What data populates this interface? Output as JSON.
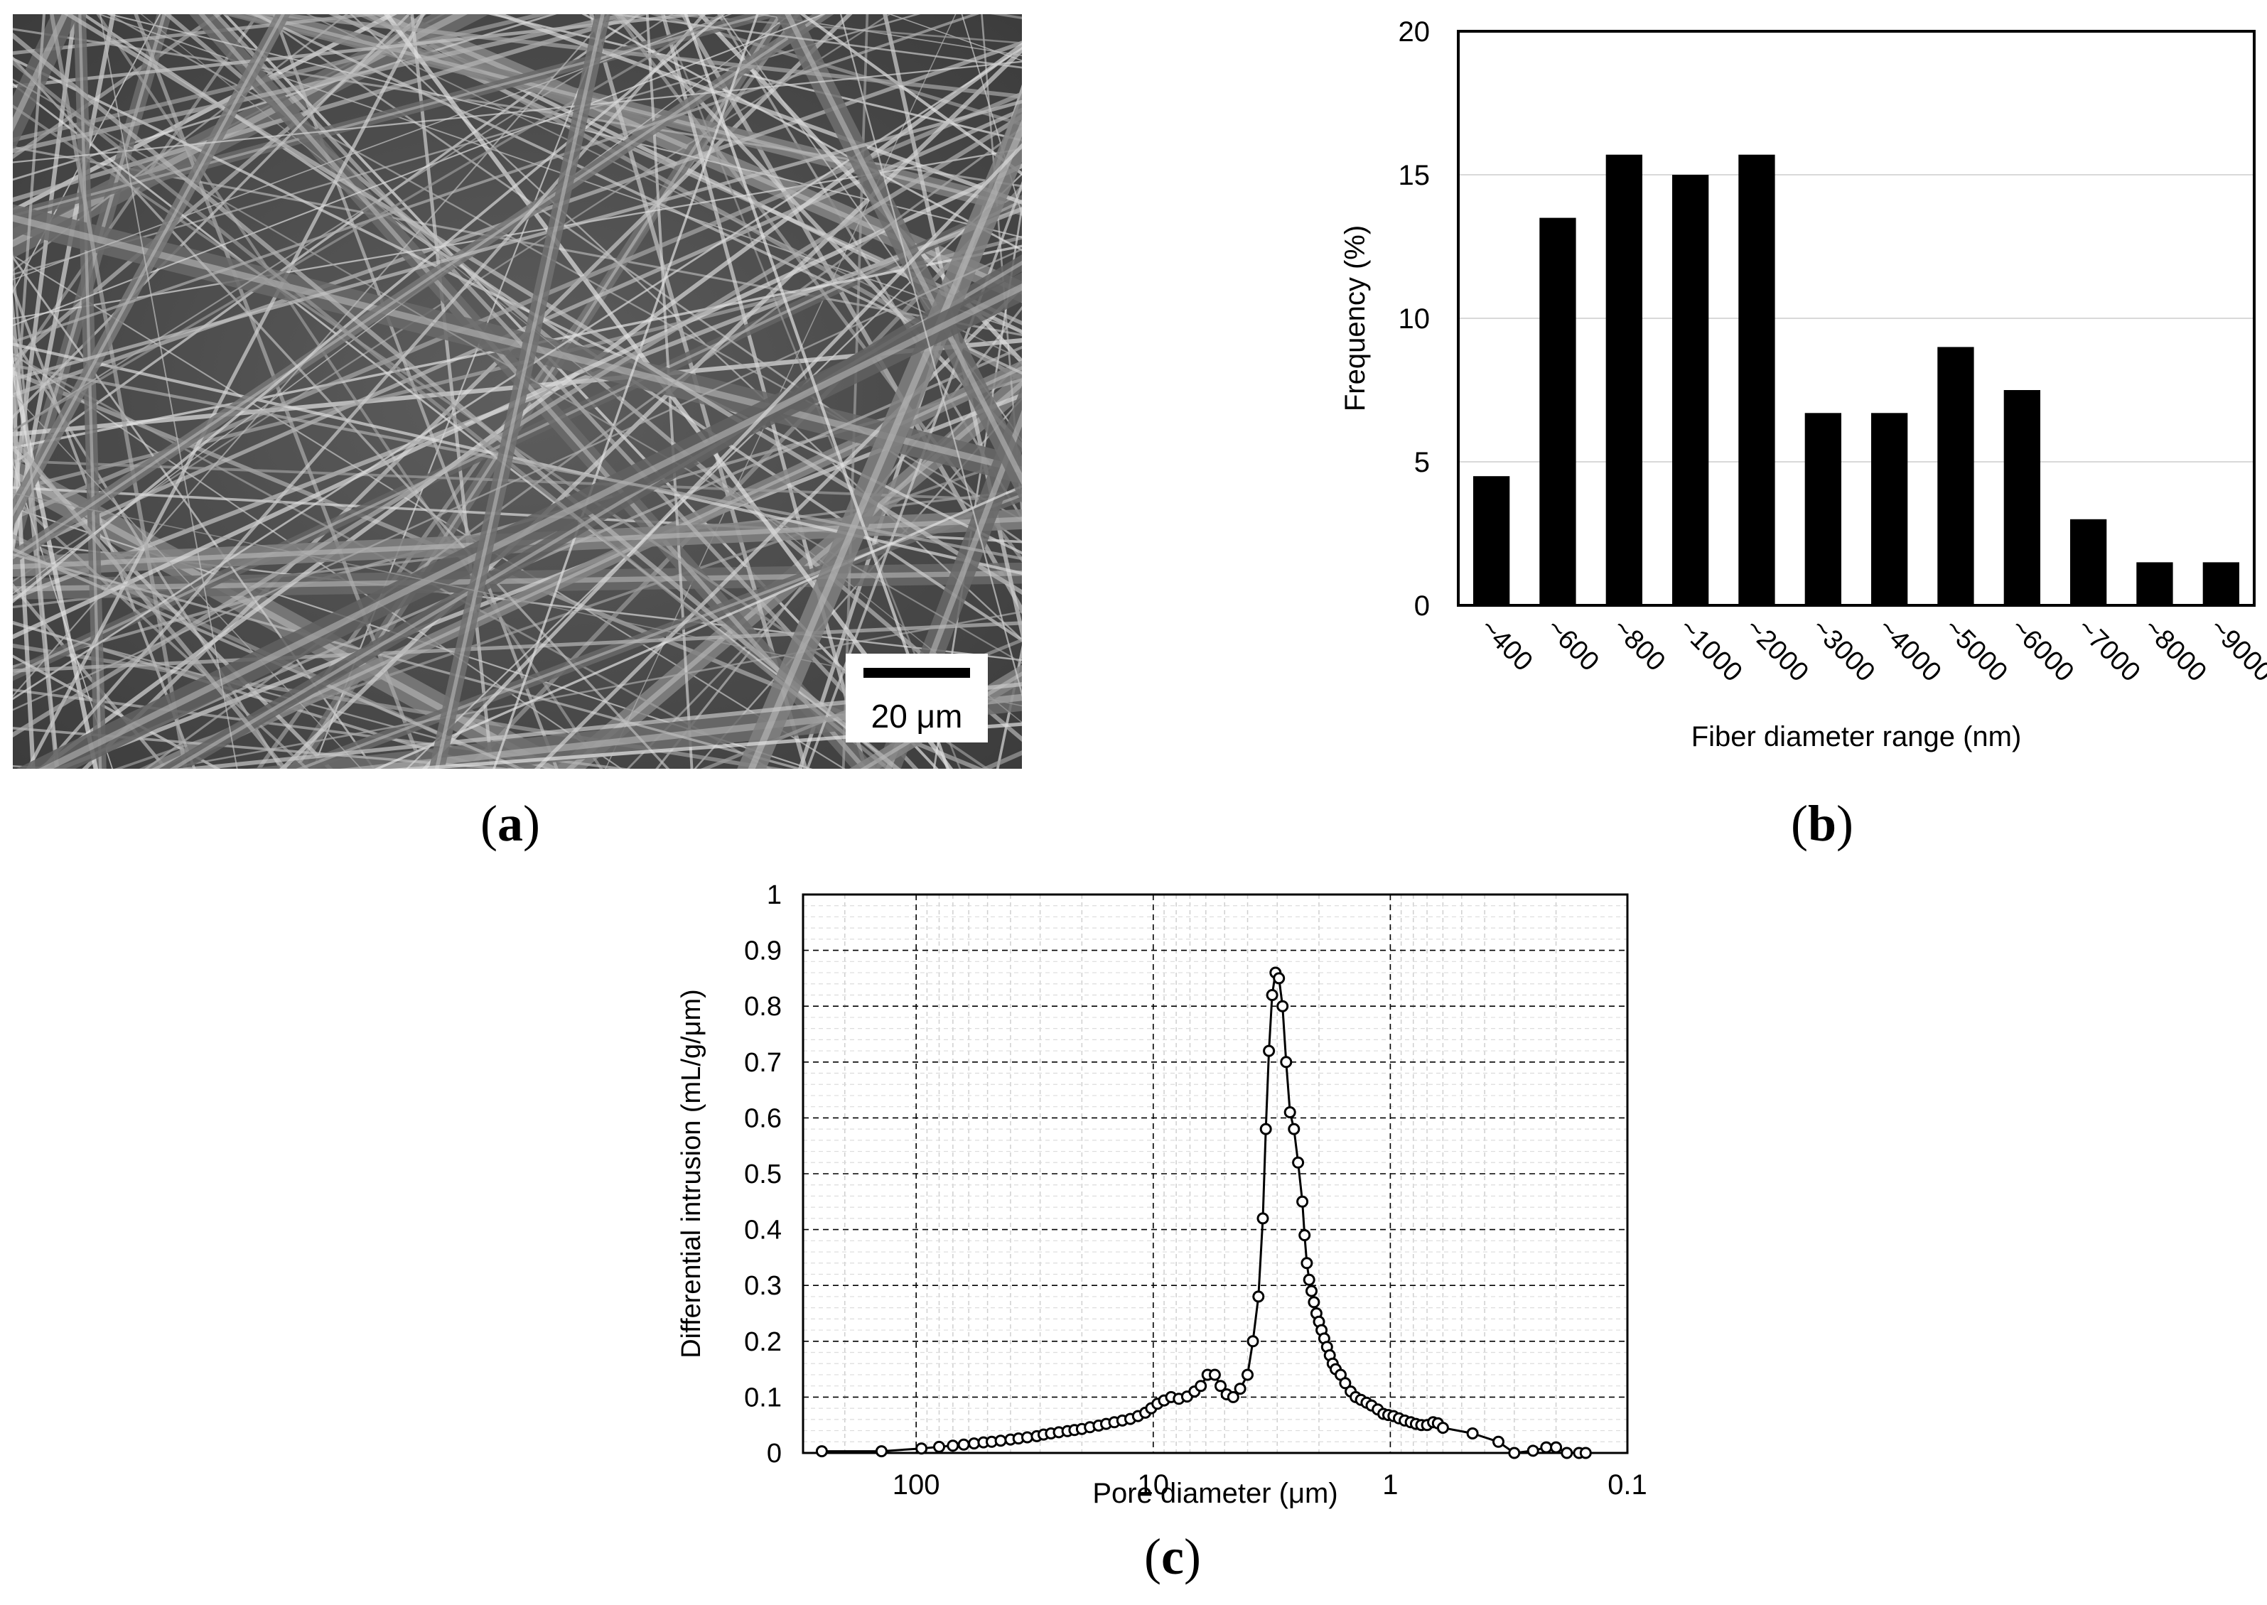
{
  "panel_a": {
    "caption_open": "(",
    "caption_letter": "a",
    "caption_close": ")",
    "scale_bar_label": "20 μm"
  },
  "panel_b": {
    "caption_open": "(",
    "caption_letter": "b",
    "caption_close": ")"
  },
  "panel_c": {
    "caption_open": "(",
    "caption_letter": "c",
    "caption_close": ")"
  },
  "chart_data": [
    {
      "type": "bar",
      "title": "",
      "xlabel": "Fiber diameter range (nm)",
      "ylabel": "Frequency (%)",
      "categories": [
        "~400",
        "~600",
        "~800",
        "~1000",
        "~2000",
        "~3000",
        "~4000",
        "~5000",
        "~6000",
        "~7000",
        "~8000",
        "~9000"
      ],
      "values": [
        4.5,
        13.5,
        15.7,
        15.0,
        15.7,
        6.7,
        6.7,
        9.0,
        7.5,
        3.0,
        1.5,
        1.5
      ],
      "ylim": [
        0,
        20
      ],
      "yticks": [
        0,
        5,
        10,
        15,
        20
      ],
      "grid": "horizontal",
      "bar_color": "#000000"
    },
    {
      "type": "line",
      "title": "",
      "xlabel": "Pore diameter (μm)",
      "ylabel": "Differential intrusion (mL/g/μm)",
      "x_scale": "log",
      "x_reversed": true,
      "xlim": [
        300,
        0.1
      ],
      "ylim": [
        0,
        1
      ],
      "xticks": [
        100,
        10,
        1,
        0.1
      ],
      "xtick_labels": [
        "100",
        "10",
        "1",
        "0.1"
      ],
      "yticks": [
        0,
        0.1,
        0.2,
        0.3,
        0.4,
        0.5,
        0.6,
        0.7,
        0.8,
        0.9,
        1
      ],
      "ytick_labels": [
        "0",
        "0.1",
        "0.2",
        "0.3",
        "0.4",
        "0.5",
        "0.6",
        "0.7",
        "0.8",
        "0.9",
        "1"
      ],
      "grid": "dashed",
      "marker": "open-circle",
      "x": [
        250,
        140,
        95,
        80,
        70,
        63,
        57,
        52,
        48,
        44,
        40,
        37,
        34,
        31,
        29,
        27,
        25,
        23,
        21.5,
        20,
        18.5,
        17,
        15.8,
        14.6,
        13.5,
        12.5,
        11.6,
        10.8,
        10.2,
        9.6,
        9.0,
        8.4,
        7.8,
        7.2,
        6.7,
        6.3,
        5.9,
        5.5,
        5.2,
        4.9,
        4.6,
        4.3,
        4.0,
        3.8,
        3.6,
        3.45,
        3.35,
        3.25,
        3.15,
        3.05,
        2.95,
        2.85,
        2.75,
        2.65,
        2.55,
        2.45,
        2.35,
        2.3,
        2.25,
        2.2,
        2.15,
        2.1,
        2.05,
        2.0,
        1.95,
        1.9,
        1.85,
        1.8,
        1.75,
        1.7,
        1.62,
        1.55,
        1.47,
        1.4,
        1.33,
        1.26,
        1.2,
        1.13,
        1.07,
        1.02,
        0.97,
        0.92,
        0.87,
        0.82,
        0.78,
        0.74,
        0.7,
        0.66,
        0.63,
        0.6,
        0.45,
        0.35,
        0.3,
        0.25,
        0.22,
        0.2,
        0.18,
        0.16,
        0.15
      ],
      "y": [
        0.003,
        0.003,
        0.008,
        0.011,
        0.013,
        0.015,
        0.017,
        0.019,
        0.02,
        0.022,
        0.024,
        0.026,
        0.028,
        0.03,
        0.033,
        0.035,
        0.037,
        0.039,
        0.041,
        0.043,
        0.046,
        0.049,
        0.052,
        0.055,
        0.058,
        0.061,
        0.066,
        0.072,
        0.08,
        0.088,
        0.094,
        0.1,
        0.097,
        0.101,
        0.11,
        0.12,
        0.14,
        0.14,
        0.12,
        0.105,
        0.1,
        0.115,
        0.14,
        0.2,
        0.28,
        0.42,
        0.58,
        0.72,
        0.82,
        0.86,
        0.85,
        0.8,
        0.7,
        0.61,
        0.58,
        0.52,
        0.45,
        0.39,
        0.34,
        0.31,
        0.29,
        0.27,
        0.25,
        0.235,
        0.22,
        0.205,
        0.19,
        0.175,
        0.16,
        0.15,
        0.14,
        0.125,
        0.11,
        0.1,
        0.095,
        0.09,
        0.085,
        0.078,
        0.07,
        0.068,
        0.066,
        0.062,
        0.058,
        0.055,
        0.052,
        0.05,
        0.05,
        0.055,
        0.053,
        0.045,
        0.035,
        0.02,
        0.0,
        0.004,
        0.01,
        0.01,
        0.0,
        0.0,
        0.0
      ]
    }
  ]
}
